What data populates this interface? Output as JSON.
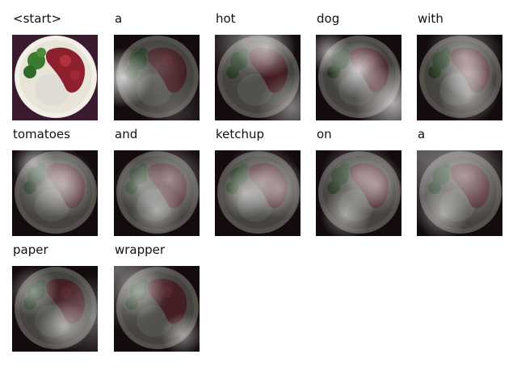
{
  "panels": [
    {
      "word": "<start>",
      "kind": "original"
    },
    {
      "word": "a",
      "kind": "attention",
      "heat": [
        [
          0.5,
          0.4,
          0.35,
          0.12
        ],
        [
          0.7,
          0.9,
          0.4,
          0.1
        ],
        [
          0.1,
          0.5,
          0.35,
          0.55
        ]
      ]
    },
    {
      "word": "hot",
      "kind": "attention",
      "heat": [
        [
          0.35,
          0.1,
          0.45,
          0.25
        ],
        [
          0.6,
          0.15,
          0.35,
          0.35
        ],
        [
          0.9,
          0.85,
          0.4,
          0.28
        ]
      ]
    },
    {
      "word": "dog",
      "kind": "attention",
      "heat": [
        [
          0.9,
          0.8,
          0.45,
          0.4
        ],
        [
          0.15,
          0.2,
          0.25,
          0.35
        ],
        [
          0.5,
          0.4,
          0.35,
          0.5
        ]
      ]
    },
    {
      "word": "with",
      "kind": "attention",
      "heat": [
        [
          0.55,
          0.25,
          0.45,
          0.3
        ],
        [
          0.6,
          0.45,
          0.3,
          0.28
        ],
        [
          0.6,
          0.7,
          0.35,
          0.3
        ]
      ]
    },
    {
      "word": "tomatoes",
      "kind": "attention",
      "heat": [
        [
          0.45,
          0.35,
          0.45,
          0.28
        ],
        [
          0.6,
          0.4,
          0.4,
          0.3
        ],
        [
          0.25,
          0.15,
          0.25,
          0.3
        ]
      ]
    },
    {
      "word": "and",
      "kind": "attention",
      "heat": [
        [
          0.65,
          0.35,
          0.45,
          0.3
        ],
        [
          0.3,
          0.4,
          0.3,
          0.25
        ],
        [
          0.5,
          0.7,
          0.3,
          0.3
        ]
      ]
    },
    {
      "word": "ketchup",
      "kind": "attention",
      "heat": [
        [
          0.55,
          0.35,
          0.45,
          0.28
        ],
        [
          0.75,
          0.45,
          0.35,
          0.25
        ],
        [
          0.35,
          0.5,
          0.3,
          0.3
        ]
      ]
    },
    {
      "word": "on",
      "kind": "attention",
      "heat": [
        [
          0.5,
          0.3,
          0.45,
          0.25
        ],
        [
          0.7,
          0.4,
          0.35,
          0.28
        ],
        [
          0.35,
          0.75,
          0.3,
          0.3
        ]
      ]
    },
    {
      "word": "a",
      "kind": "attention",
      "heat": [
        [
          0.55,
          0.3,
          0.55,
          0.3
        ],
        [
          0.05,
          0.05,
          0.85,
          0.2
        ],
        [
          0.3,
          0.75,
          0.3,
          0.3
        ]
      ]
    },
    {
      "word": "paper",
      "kind": "attention",
      "heat": [
        [
          0.25,
          0.3,
          0.3,
          0.3
        ],
        [
          0.95,
          0.6,
          0.5,
          0.2
        ],
        [
          0.6,
          0.7,
          0.3,
          0.3
        ]
      ]
    },
    {
      "word": "wrapper",
      "kind": "attention",
      "heat": [
        [
          0.05,
          0.05,
          0.7,
          0.22
        ],
        [
          0.3,
          0.3,
          0.3,
          0.3
        ],
        [
          0.8,
          0.8,
          0.25,
          0.3
        ]
      ]
    }
  ]
}
